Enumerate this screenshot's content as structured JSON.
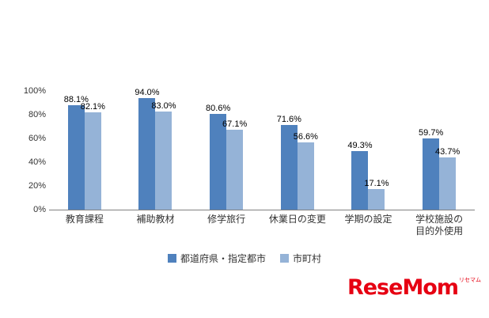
{
  "chart_data": {
    "type": "bar",
    "categories": [
      "教育課程",
      "補助教材",
      "修学旅行",
      "休業日の変更",
      "学期の設定",
      "学校施設の\n目的外使用"
    ],
    "series": [
      {
        "name": "都道府県・指定都市",
        "color": "#4f81bd",
        "values": [
          88.1,
          94.0,
          80.6,
          71.6,
          49.3,
          59.7
        ],
        "labels": [
          "88.1%",
          "94.0%",
          "80.6%",
          "71.6%",
          "49.3%",
          "59.7%"
        ]
      },
      {
        "name": "市町村",
        "color": "#95b3d7",
        "values": [
          82.1,
          83.0,
          67.1,
          56.6,
          17.1,
          43.7
        ],
        "labels": [
          "82.1%",
          "83.0%",
          "67.1%",
          "56.6%",
          "17.1%",
          "43.7%"
        ]
      }
    ],
    "title": "",
    "xlabel": "",
    "ylabel": "",
    "ylim": [
      0,
      100
    ],
    "grid": false,
    "legend_position": "bottom",
    "yticks": [
      {
        "value": 0,
        "label": "0%"
      },
      {
        "value": 20,
        "label": "20%"
      },
      {
        "value": 40,
        "label": "40%"
      },
      {
        "value": 60,
        "label": "60%"
      },
      {
        "value": 80,
        "label": "80%"
      },
      {
        "value": 100,
        "label": "100%"
      }
    ]
  },
  "logo": {
    "text": "ReseMom",
    "sub": "リセマム"
  }
}
